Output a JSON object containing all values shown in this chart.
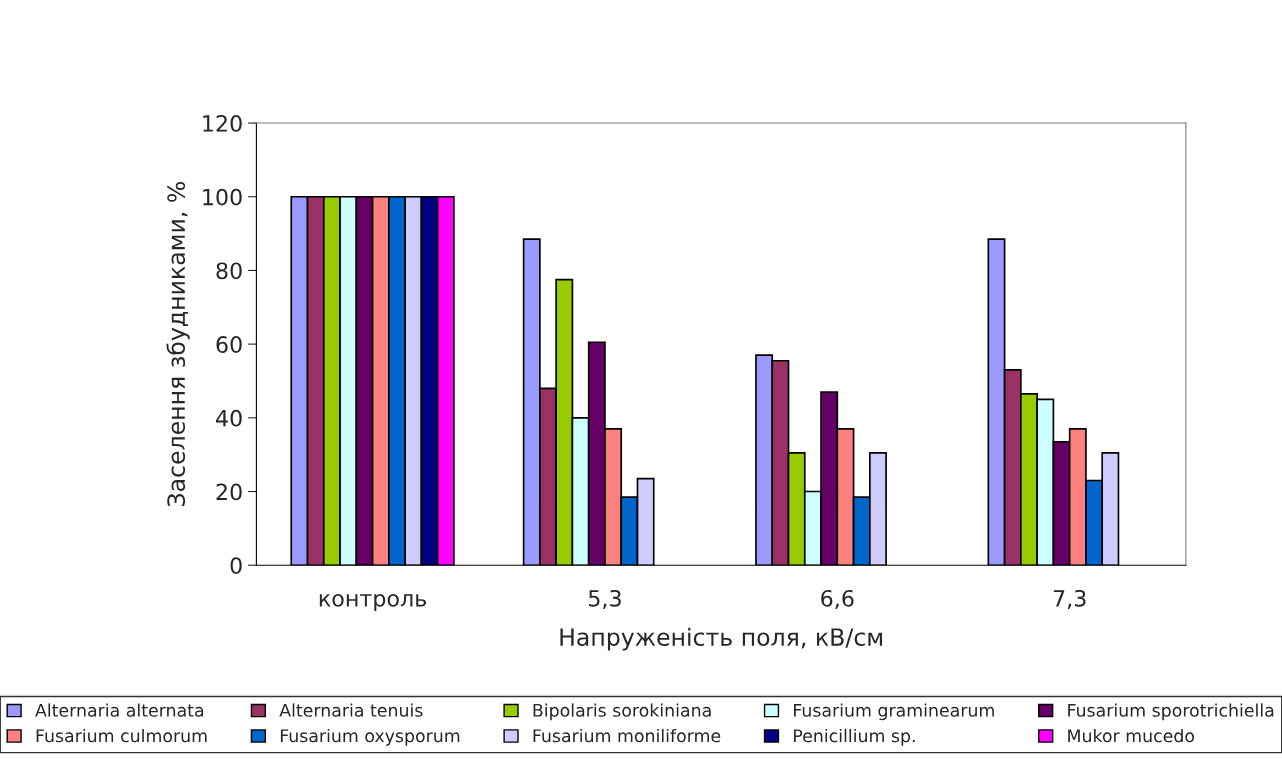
{
  "chart_data": {
    "type": "bar",
    "xlabel": "Напруженість поля, кВ/см",
    "ylabel": "Заселення збудниками, %",
    "categories": [
      "контроль",
      "5,3",
      "6,6",
      "7,3"
    ],
    "ylim": [
      0,
      120
    ],
    "yticks": [
      0,
      20,
      40,
      60,
      80,
      100,
      120
    ],
    "grid": false,
    "legend": "bottom",
    "series": [
      {
        "name": "Alternaria alternata",
        "color": "#9999ff",
        "values": [
          100,
          88.5,
          57,
          88.5
        ]
      },
      {
        "name": "Alternaria tenuis",
        "color": "#993366",
        "values": [
          100,
          48,
          55.5,
          53
        ]
      },
      {
        "name": "Bipolaris sorokiniana",
        "color": "#99cc00",
        "values": [
          100,
          77.5,
          30.5,
          46.5
        ]
      },
      {
        "name": "Fusarium graminearum",
        "color": "#ccffff",
        "values": [
          100,
          40,
          20,
          45
        ]
      },
      {
        "name": "Fusarium sporotrichiella",
        "color": "#660066",
        "values": [
          100,
          60.5,
          47,
          33.5
        ]
      },
      {
        "name": "Fusarium culmorum",
        "color": "#ff8080",
        "values": [
          100,
          37,
          37,
          37
        ]
      },
      {
        "name": "Fusarium oxysporum",
        "color": "#0066cc",
        "values": [
          100,
          18.5,
          18.5,
          23
        ]
      },
      {
        "name": "Fusarium moniliforme",
        "color": "#ccccff",
        "values": [
          100,
          23.5,
          30.5,
          30.5
        ]
      },
      {
        "name": "Penicillium sp.",
        "color": "#000080",
        "values": [
          100,
          null,
          null,
          null
        ]
      },
      {
        "name": "Mukor mucedo",
        "color": "#ff00ff",
        "values": [
          100,
          null,
          null,
          null
        ]
      }
    ]
  }
}
